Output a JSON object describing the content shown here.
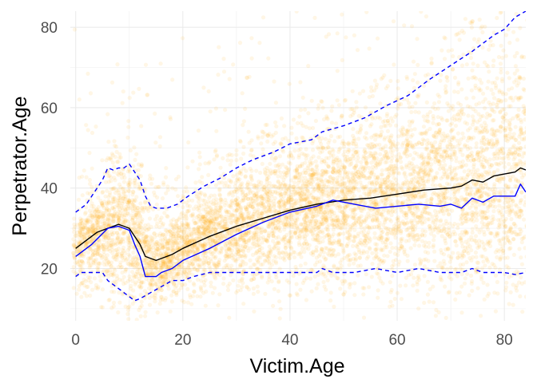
{
  "chart_data": {
    "type": "scatter",
    "title": "",
    "xlabel": "Victim.Age",
    "ylabel": "Perpetrator.Age",
    "xlim": [
      -1,
      84
    ],
    "ylim": [
      7,
      84
    ],
    "x_ticks": [
      0,
      20,
      40,
      60,
      80
    ],
    "y_ticks": [
      20,
      40,
      60,
      80
    ],
    "x_tick_labels": [
      "0",
      "20",
      "40",
      "60",
      "80"
    ],
    "y_tick_labels": [
      "20",
      "40",
      "60",
      "80"
    ],
    "grid": true,
    "legend": "none",
    "point_color": "#ffa500",
    "point_alpha": 0.1,
    "series": [
      {
        "style": "solid",
        "color": "#000000",
        "x": [
          0,
          2,
          4,
          6,
          8,
          10,
          12,
          13,
          15,
          18,
          20,
          25,
          30,
          35,
          40,
          45,
          50,
          55,
          60,
          65,
          70,
          72,
          74,
          76,
          78,
          80,
          82,
          83,
          84
        ],
        "y": [
          25,
          27,
          29,
          30,
          31,
          30,
          26,
          23,
          22,
          23.5,
          25,
          28,
          30.5,
          32.5,
          34.5,
          36,
          37,
          37.5,
          38.5,
          39.5,
          40,
          40.5,
          42,
          41.5,
          43,
          43.5,
          44,
          45,
          44.5
        ]
      },
      {
        "style": "solid",
        "color": "#0000ff",
        "x": [
          0,
          3,
          6,
          8,
          10,
          11,
          12,
          13,
          14,
          15,
          16,
          18,
          20,
          25,
          30,
          35,
          40,
          45,
          48,
          52,
          56,
          60,
          64,
          68,
          70,
          72,
          74,
          76,
          78,
          80,
          82,
          83,
          84
        ],
        "y": [
          23,
          26,
          30,
          30.5,
          29.5,
          26,
          23,
          18,
          18,
          18,
          19,
          20,
          22,
          25,
          28.5,
          31.5,
          34,
          35.5,
          37,
          36,
          35,
          35.5,
          36,
          35.5,
          36,
          35,
          37.5,
          36.5,
          38,
          38,
          38,
          41,
          39
        ]
      },
      {
        "style": "dashed",
        "color": "#0000ff",
        "x": [
          0,
          2,
          4,
          5,
          6,
          7,
          8,
          9,
          10,
          11,
          12,
          13,
          14,
          15,
          17,
          19,
          21,
          24,
          27,
          30,
          33,
          37,
          40,
          44,
          46,
          50,
          54,
          58,
          62,
          66,
          70,
          74,
          78,
          80,
          82,
          84
        ],
        "y": [
          34,
          36,
          40,
          42,
          45,
          44.5,
          45,
          45,
          46,
          44,
          42,
          38,
          35.5,
          35,
          35,
          36,
          38,
          40.5,
          42.5,
          45,
          47,
          49,
          51,
          52,
          54,
          55.5,
          57.5,
          60.5,
          63,
          67,
          70.5,
          74,
          78,
          79.5,
          82.5,
          84
        ]
      },
      {
        "style": "dashed",
        "color": "#0000ff",
        "x": [
          0,
          1,
          2,
          4,
          5,
          6,
          8,
          10,
          11,
          12,
          14,
          16,
          18,
          20,
          22,
          25,
          30,
          35,
          40,
          45,
          46,
          48,
          52,
          56,
          60,
          64,
          68,
          72,
          74,
          76,
          78,
          80,
          82,
          84
        ],
        "y": [
          18,
          19,
          19,
          19,
          19,
          17,
          15,
          13,
          12,
          12.5,
          14,
          15.5,
          17,
          17,
          18,
          19,
          19,
          19,
          19,
          19,
          20,
          19,
          19,
          20,
          19,
          20,
          19,
          19,
          20,
          19,
          19,
          19,
          18.5,
          19
        ]
      }
    ]
  }
}
